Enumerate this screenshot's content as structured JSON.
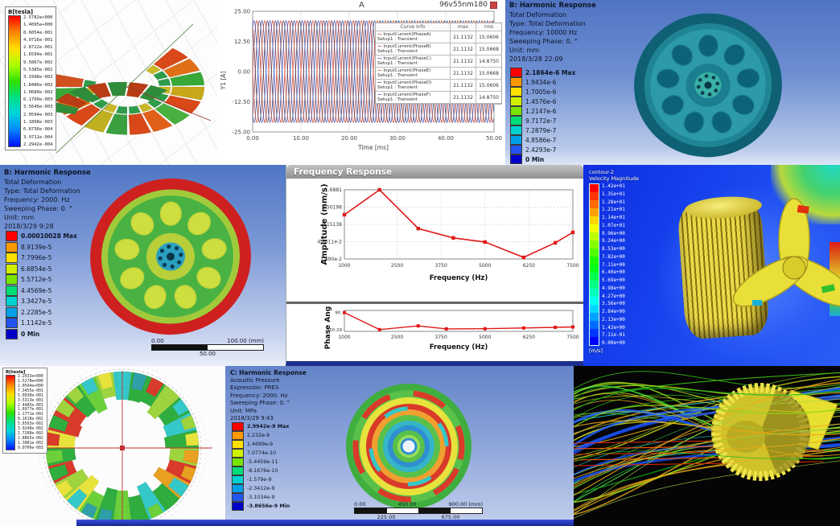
{
  "chart_data": [
    {
      "type": "line",
      "title": "A",
      "badge": "96v55nm180",
      "xlabel": "Time [ms]",
      "ylabel": "Y1 [A]",
      "xlim": [
        0,
        50
      ],
      "ylim": [
        -25,
        25
      ],
      "xticks": [
        "0.00",
        "10.00",
        "20.00",
        "30.00",
        "40.00",
        "50.00"
      ],
      "yticks": [
        "25.00",
        "12.50",
        "0.00",
        "-12.50",
        "-25.00"
      ],
      "amplitude": 21.1132,
      "period_ms": 3.3333,
      "legend_header": {
        "info": "Curve Info",
        "max": "max",
        "rms": "rms"
      },
      "series": [
        {
          "name": "InputCurrent(PhaseA)",
          "setup": "Setup1 : Transient",
          "max": "21.1132",
          "rms": "15.0606",
          "color": "#c23a2e",
          "phase_deg": 0
        },
        {
          "name": "InputCurrent(PhaseB)",
          "setup": "Setup1 : Transient",
          "max": "21.1132",
          "rms": "15.0668",
          "color": "#7a3b52",
          "phase_deg": 300
        },
        {
          "name": "InputCurrent(PhaseC)",
          "setup": "Setup1 : Transient",
          "max": "21.1132",
          "rms": "14.8750",
          "color": "#2e4aa0",
          "phase_deg": 240
        },
        {
          "name": "InputCurrent(PhaseE)",
          "setup": "Setup1 : Transient",
          "max": "21.1132",
          "rms": "15.0668",
          "color": "#d0503a",
          "phase_deg": 180
        },
        {
          "name": "InputCurrent(PhaseD)",
          "setup": "Setup1 : Transient",
          "max": "21.1132",
          "rms": "15.0606",
          "color": "#5a2d3e",
          "phase_deg": 120
        },
        {
          "name": "InputCurrent(PhaseF)",
          "setup": "Setup1 : Transient",
          "max": "21.1132",
          "rms": "14.8750",
          "color": "#3558c0",
          "phase_deg": 60
        }
      ]
    },
    {
      "type": "line",
      "window_title": "Frequency Response",
      "ylabel": "Amplitude (mm/s)",
      "xlabel": "Frequency (Hz)",
      "x": [
        1000,
        2000,
        3100,
        4100,
        5000,
        6100,
        7000,
        7500
      ],
      "y": [
        0.3,
        1.6881,
        0.115,
        0.06,
        0.045,
        0.0155,
        0.043,
        0.088
      ],
      "yscale": "log",
      "yticks": [
        "1.6881",
        "0.50198",
        "0.15138",
        "4.6011e-2",
        "1.390e-2"
      ],
      "ytick_vals": [
        1.6881,
        0.50198,
        0.15138,
        0.046011,
        0.0139
      ],
      "xticks": [
        1000,
        2500,
        3750,
        5000,
        6250,
        7500
      ],
      "line_color": "#e01818"
    },
    {
      "type": "line",
      "ylabel": "Phase Angle",
      "xlabel": "Frequency (Hz)",
      "x": [
        1000,
        2000,
        3100,
        3900,
        5000,
        6100,
        7000,
        7500
      ],
      "y": [
        90,
        -150,
        -98,
        -140,
        -138,
        -127,
        -118,
        -113
      ],
      "yticks": [
        "90.",
        "-150.29"
      ],
      "ytick_vals": [
        90,
        -150.29
      ],
      "ylim": [
        120,
        -175
      ],
      "xticks": [
        1000,
        2500,
        3750,
        5000,
        6250,
        7500
      ],
      "line_color": "#e01818"
    }
  ],
  "flux_segment": {
    "legend_title": "B[tesla]",
    "values": [
      "2.5782e+000",
      "1.4095e+000",
      "8.6054e-001",
      "4.9716e-001",
      "2.8722e-001",
      "1.6594e-001",
      "9.5867e-002",
      "5.5385e-002",
      "3.1998e-002",
      "1.8486e-002",
      "1.0680e-002",
      "6.1700e-003",
      "3.5646e-003",
      "2.0594e-003",
      "1.1898e-003",
      "6.8736e-004",
      "3.9711e-004",
      "2.2942e-004"
    ]
  },
  "harmonic_10000": {
    "title": "B: Harmonic Response",
    "lines": [
      "Total Deformation",
      "Type: Total Deformation",
      "Frequency: 10000 Hz",
      "Sweeping Phase: 0. °",
      "Unit: mm",
      "2018/3/28 22:09"
    ],
    "legend": [
      "2.1864e-6 Max",
      "1.9434e-6",
      "1.7005e-6",
      "1.4576e-6",
      "1.2147e-6",
      "9.7172e-7",
      "7.2879e-7",
      "4.8586e-7",
      "2.4293e-7",
      "0 Min"
    ]
  },
  "harmonic_2000": {
    "title": "B: Harmonic Response",
    "lines": [
      "Total Deformation",
      "Type: Total Deformation",
      "Frequency: 2000. Hz",
      "Sweeping Phase: 0. °",
      "Unit: mm",
      "2018/3/29 9:28"
    ],
    "legend": [
      "0.00010028 Max",
      "8.9139e-5",
      "7.7996e-5",
      "6.6854e-5",
      "5.5712e-5",
      "4.4569e-5",
      "3.3427e-5",
      "2.2285e-5",
      "1.1142e-5",
      "0 Min"
    ],
    "scale_bar": {
      "left": "0.00",
      "mid": "50.00",
      "right": "100.00 (mm)"
    }
  },
  "frequency_response": {
    "window_title": "Frequency Response"
  },
  "cfd_velocity": {
    "legend_title_1": "contour-2",
    "legend_title_2": "Velocity Magnitude",
    "unit": "[m/s]",
    "values": [
      "1.42e+01",
      "1.35e+01",
      "1.28e+01",
      "1.21e+01",
      "1.14e+01",
      "1.07e+01",
      "9.96e+00",
      "9.24e+00",
      "8.53e+00",
      "7.82e+00",
      "7.11e+00",
      "6.40e+00",
      "5.69e+00",
      "4.98e+00",
      "4.27e+00",
      "3.56e+00",
      "2.84e+00",
      "2.13e+00",
      "1.42e+00",
      "7.11e-01",
      "0.00e+00"
    ]
  },
  "flux_rotor": {
    "legend_title": "B[tesla]",
    "values": [
      "2.2033e+000",
      "1.5278e+000",
      "1.0594e+000",
      "7.3455e-001",
      "5.0930e-001",
      "3.5313e-001",
      "2.4485e-001",
      "1.6977e-001",
      "1.1771e-001",
      "8.1618e-002",
      "5.6593e-002",
      "3.9240e-002",
      "2.7208e-002",
      "1.8865e-002",
      "1.3081e-002",
      "9.0700e-003"
    ]
  },
  "acoustic": {
    "title": "C: Harmonic Response",
    "lines": [
      "Acoustic Pressure",
      "Expression: PRES",
      "Frequency: 2000. Hz",
      "Sweeping Phase: 0. °",
      "Unit: MPa",
      "2018/3/29 9:43"
    ],
    "legend": [
      "2.9942e-9 Max",
      "2.232e-9",
      "1.4699e-9",
      "7.0774e-10",
      "-5.4459e-11",
      "-8.1676e-10",
      "-1.579e-9",
      "-2.3412e-9",
      "-3.1034e-9",
      "-3.8656e-9 Min"
    ],
    "scale_bar": {
      "row1": [
        "0.00",
        "450.00",
        "900.00 (mm)"
      ],
      "row2": [
        "225.00",
        "675.00"
      ]
    }
  },
  "colors": {
    "band10": [
      "#ff0000",
      "#ff9900",
      "#ffe100",
      "#d0f000",
      "#78e400",
      "#00dc78",
      "#00d2d2",
      "#00a0e8",
      "#2255f0",
      "#0000c8"
    ],
    "ansys_text": "#0d1526"
  }
}
